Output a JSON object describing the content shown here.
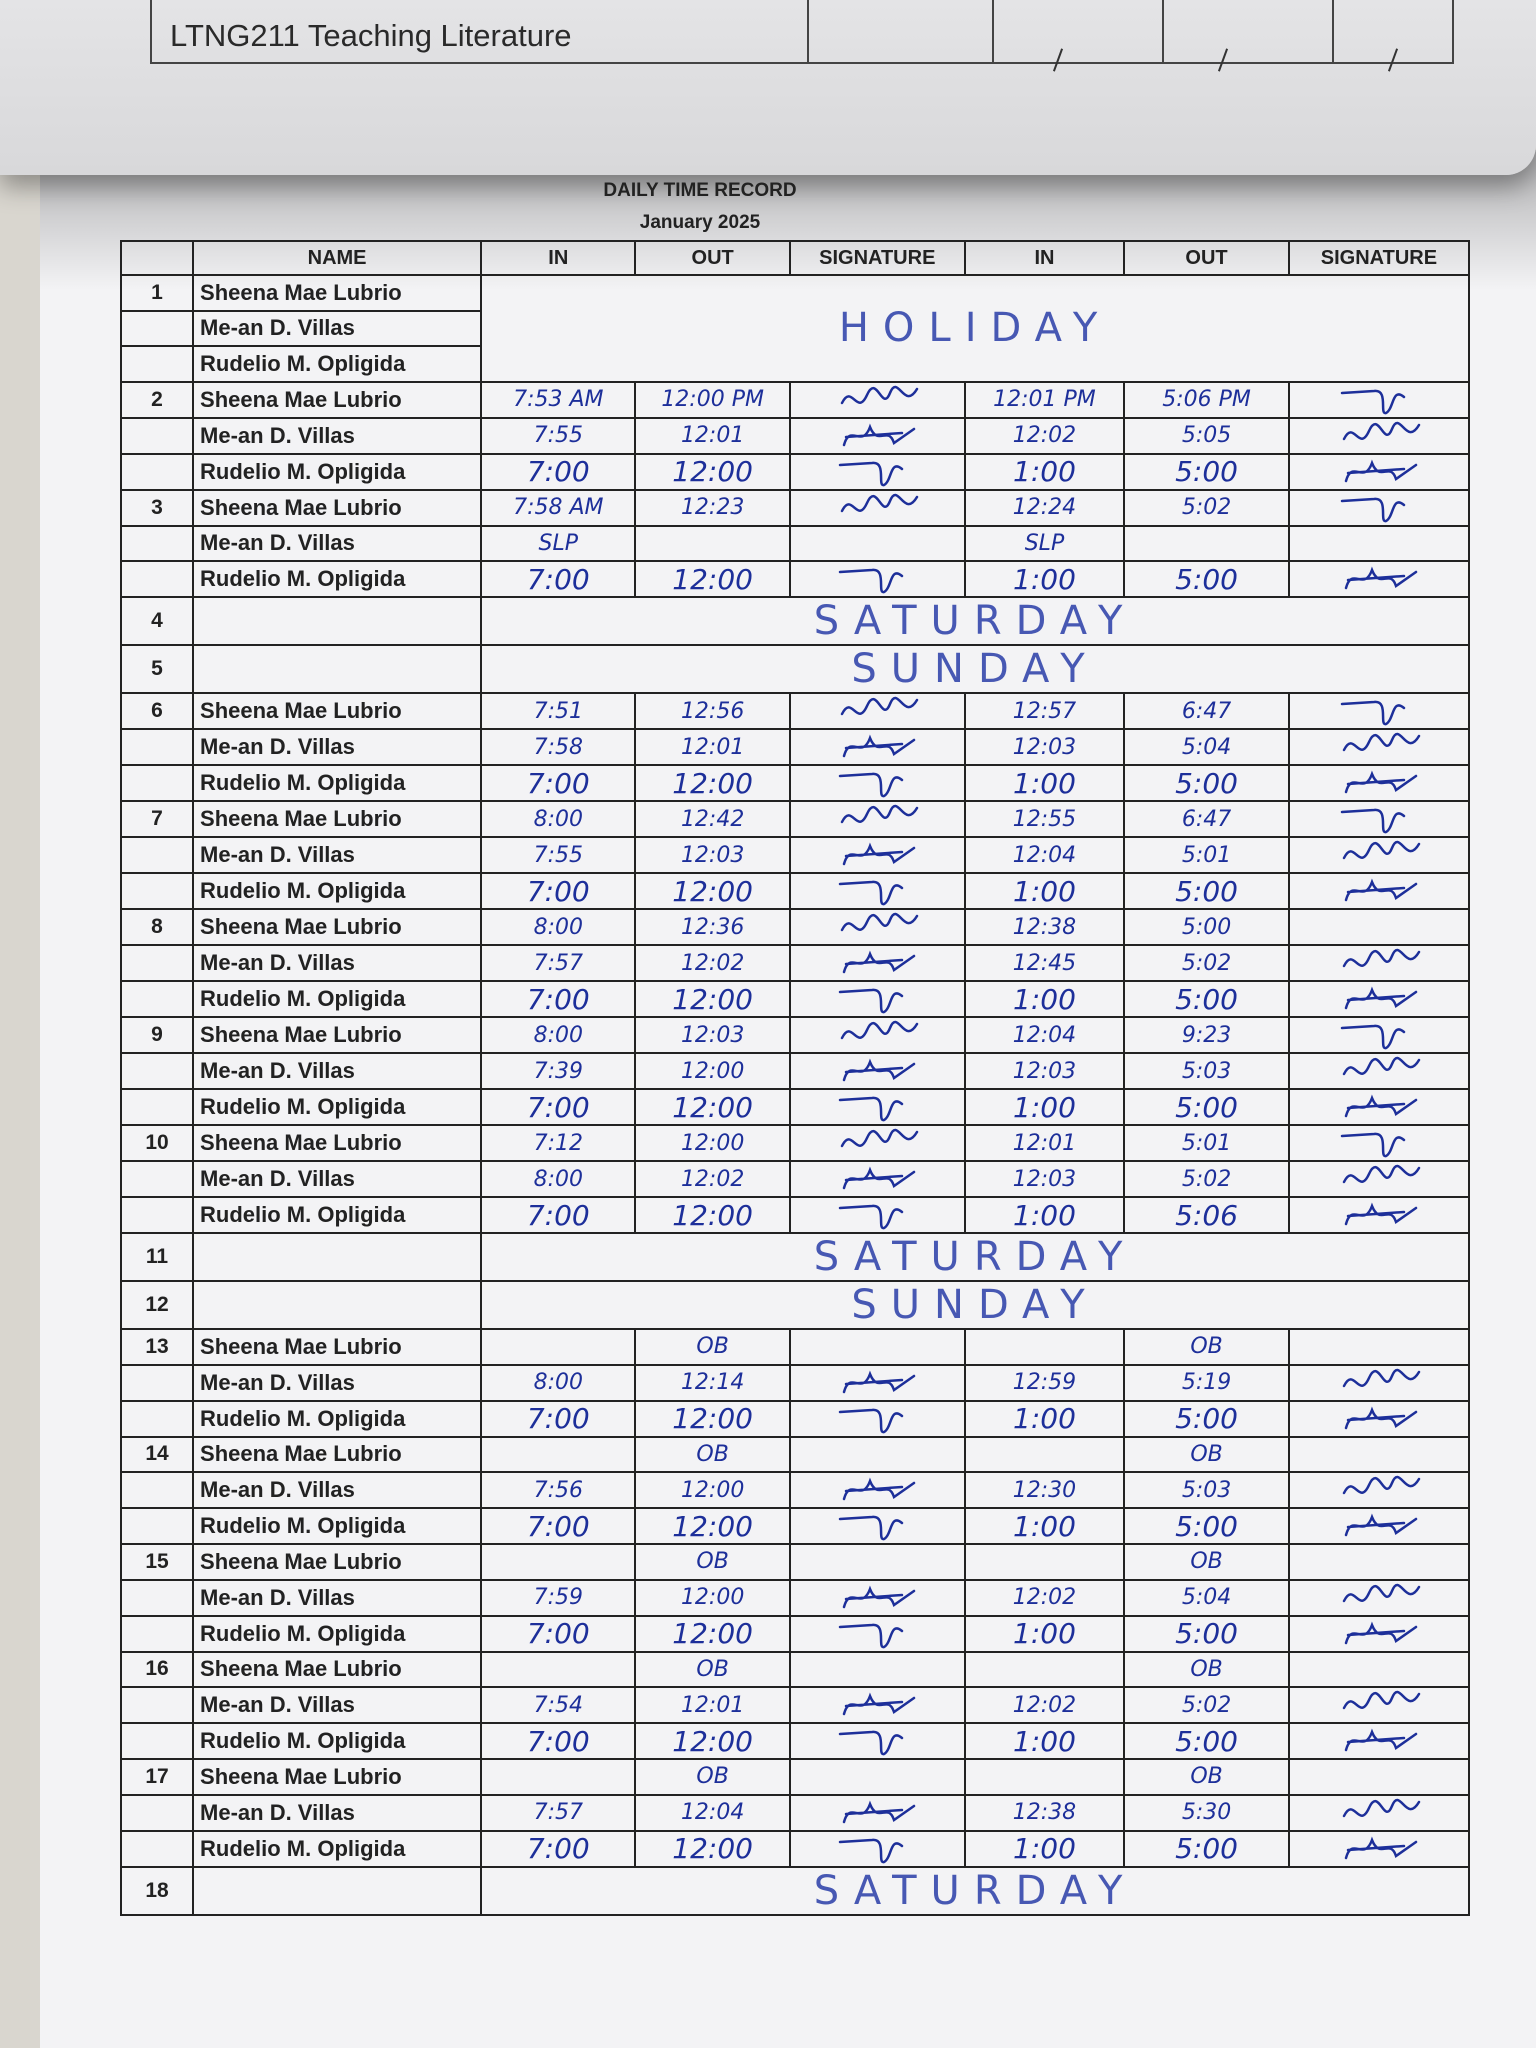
{
  "top_page": {
    "course": "LTNG211  Teaching Literature"
  },
  "document": {
    "title": "DAILY TIME RECORD",
    "period": "January 2025",
    "headers": [
      "",
      "NAME",
      "IN",
      "OUT",
      "SIGNATURE",
      "IN",
      "OUT",
      "SIGNATURE"
    ]
  },
  "ink_color": "#1d2f9a",
  "days": [
    {
      "day": "1",
      "note": "HOLIDAY",
      "entries": [
        {
          "name": "Sheena Mae Lubrio"
        },
        {
          "name": "Me-an D. Villas"
        },
        {
          "name": "Rudelio M. Opligida"
        }
      ]
    },
    {
      "day": "2",
      "entries": [
        {
          "name": "Sheena Mae Lubrio",
          "am_in": "7:53 AM",
          "am_out": "12:00 PM",
          "am_sig": true,
          "pm_in": "12:01 PM",
          "pm_out": "5:06 PM",
          "pm_sig": true
        },
        {
          "name": "Me-an D. Villas",
          "am_in": "7:55",
          "am_out": "12:01",
          "am_sig": true,
          "pm_in": "12:02",
          "pm_out": "5:05",
          "pm_sig": true
        },
        {
          "name": "Rudelio M. Opligida",
          "am_in": "7:00",
          "am_out": "12:00",
          "am_sig": true,
          "pm_in": "1:00",
          "pm_out": "5:00",
          "pm_sig": true
        }
      ]
    },
    {
      "day": "3",
      "entries": [
        {
          "name": "Sheena Mae Lubrio",
          "am_in": "7:58 AM",
          "am_out": "12:23",
          "am_sig": true,
          "pm_in": "12:24",
          "pm_out": "5:02",
          "pm_sig": true
        },
        {
          "name": "Me-an D. Villas",
          "am_in": "SLP",
          "pm_in": "SLP"
        },
        {
          "name": "Rudelio M. Opligida",
          "am_in": "7:00",
          "am_out": "12:00",
          "am_sig": true,
          "pm_in": "1:00",
          "pm_out": "5:00",
          "pm_sig": true
        }
      ]
    },
    {
      "day": "4",
      "note": "SATURDAY"
    },
    {
      "day": "5",
      "note": "SUNDAY"
    },
    {
      "day": "6",
      "entries": [
        {
          "name": "Sheena Mae Lubrio",
          "am_in": "7:51",
          "am_out": "12:56",
          "am_sig": true,
          "pm_in": "12:57",
          "pm_out": "6:47",
          "pm_sig": true
        },
        {
          "name": "Me-an D. Villas",
          "am_in": "7:58",
          "am_out": "12:01",
          "am_sig": true,
          "pm_in": "12:03",
          "pm_out": "5:04",
          "pm_sig": true
        },
        {
          "name": "Rudelio M. Opligida",
          "am_in": "7:00",
          "am_out": "12:00",
          "am_sig": true,
          "pm_in": "1:00",
          "pm_out": "5:00",
          "pm_sig": true
        }
      ]
    },
    {
      "day": "7",
      "entries": [
        {
          "name": "Sheena Mae Lubrio",
          "am_in": "8:00",
          "am_out": "12:42",
          "am_sig": true,
          "pm_in": "12:55",
          "pm_out": "6:47",
          "pm_sig": true
        },
        {
          "name": "Me-an D. Villas",
          "am_in": "7:55",
          "am_out": "12:03",
          "am_sig": true,
          "pm_in": "12:04",
          "pm_out": "5:01",
          "pm_sig": true
        },
        {
          "name": "Rudelio M. Opligida",
          "am_in": "7:00",
          "am_out": "12:00",
          "am_sig": true,
          "pm_in": "1:00",
          "pm_out": "5:00",
          "pm_sig": true
        }
      ]
    },
    {
      "day": "8",
      "entries": [
        {
          "name": "Sheena Mae Lubrio",
          "am_in": "8:00",
          "am_out": "12:36",
          "am_sig": true,
          "pm_in": "12:38",
          "pm_out": "5:00"
        },
        {
          "name": "Me-an D. Villas",
          "am_in": "7:57",
          "am_out": "12:02",
          "am_sig": true,
          "pm_in": "12:45",
          "pm_out": "5:02",
          "pm_sig": true
        },
        {
          "name": "Rudelio M. Opligida",
          "am_in": "7:00",
          "am_out": "12:00",
          "am_sig": true,
          "pm_in": "1:00",
          "pm_out": "5:00",
          "pm_sig": true
        }
      ]
    },
    {
      "day": "9",
      "entries": [
        {
          "name": "Sheena Mae Lubrio",
          "am_in": "8:00",
          "am_out": "12:03",
          "am_sig": true,
          "pm_in": "12:04",
          "pm_out": "9:23",
          "pm_sig": true
        },
        {
          "name": "Me-an D. Villas",
          "am_in": "7:39",
          "am_out": "12:00",
          "am_sig": true,
          "pm_in": "12:03",
          "pm_out": "5:03",
          "pm_sig": true
        },
        {
          "name": "Rudelio M. Opligida",
          "am_in": "7:00",
          "am_out": "12:00",
          "am_sig": true,
          "pm_in": "1:00",
          "pm_out": "5:00",
          "pm_sig": true
        }
      ]
    },
    {
      "day": "10",
      "entries": [
        {
          "name": "Sheena Mae Lubrio",
          "am_in": "7:12",
          "am_out": "12:00",
          "am_sig": true,
          "pm_in": "12:01",
          "pm_out": "5:01",
          "pm_sig": true
        },
        {
          "name": "Me-an D. Villas",
          "am_in": "8:00",
          "am_out": "12:02",
          "am_sig": true,
          "pm_in": "12:03",
          "pm_out": "5:02",
          "pm_sig": true
        },
        {
          "name": "Rudelio M. Opligida",
          "am_in": "7:00",
          "am_out": "12:00",
          "am_sig": true,
          "pm_in": "1:00",
          "pm_out": "5:06",
          "pm_sig": true
        }
      ]
    },
    {
      "day": "11",
      "note": "SATURDAY"
    },
    {
      "day": "12",
      "note": "SUNDAY"
    },
    {
      "day": "13",
      "entries": [
        {
          "name": "Sheena Mae Lubrio",
          "am_out": "OB",
          "pm_out": "OB"
        },
        {
          "name": "Me-an D. Villas",
          "am_in": "8:00",
          "am_out": "12:14",
          "am_sig": true,
          "pm_in": "12:59",
          "pm_out": "5:19",
          "pm_sig": true
        },
        {
          "name": "Rudelio M. Opligida",
          "am_in": "7:00",
          "am_out": "12:00",
          "am_sig": true,
          "pm_in": "1:00",
          "pm_out": "5:00",
          "pm_sig": true
        }
      ]
    },
    {
      "day": "14",
      "entries": [
        {
          "name": "Sheena Mae Lubrio",
          "am_out": "OB",
          "pm_out": "OB"
        },
        {
          "name": "Me-an D. Villas",
          "am_in": "7:56",
          "am_out": "12:00",
          "am_sig": true,
          "pm_in": "12:30",
          "pm_out": "5:03",
          "pm_sig": true
        },
        {
          "name": "Rudelio M. Opligida",
          "am_in": "7:00",
          "am_out": "12:00",
          "am_sig": true,
          "pm_in": "1:00",
          "pm_out": "5:00",
          "pm_sig": true
        }
      ]
    },
    {
      "day": "15",
      "entries": [
        {
          "name": "Sheena Mae Lubrio",
          "am_out": "OB",
          "pm_out": "OB"
        },
        {
          "name": "Me-an D. Villas",
          "am_in": "7:59",
          "am_out": "12:00",
          "am_sig": true,
          "pm_in": "12:02",
          "pm_out": "5:04",
          "pm_sig": true
        },
        {
          "name": "Rudelio M. Opligida",
          "am_in": "7:00",
          "am_out": "12:00",
          "am_sig": true,
          "pm_in": "1:00",
          "pm_out": "5:00",
          "pm_sig": true
        }
      ]
    },
    {
      "day": "16",
      "entries": [
        {
          "name": "Sheena Mae Lubrio",
          "am_out": "OB",
          "pm_out": "OB"
        },
        {
          "name": "Me-an D. Villas",
          "am_in": "7:54",
          "am_out": "12:01",
          "am_sig": true,
          "pm_in": "12:02",
          "pm_out": "5:02",
          "pm_sig": true
        },
        {
          "name": "Rudelio M. Opligida",
          "am_in": "7:00",
          "am_out": "12:00",
          "am_sig": true,
          "pm_in": "1:00",
          "pm_out": "5:00",
          "pm_sig": true
        }
      ]
    },
    {
      "day": "17",
      "entries": [
        {
          "name": "Sheena Mae Lubrio",
          "am_out": "OB",
          "pm_out": "OB"
        },
        {
          "name": "Me-an D. Villas",
          "am_in": "7:57",
          "am_out": "12:04",
          "am_sig": true,
          "pm_in": "12:38",
          "pm_out": "5:30",
          "pm_sig": true
        },
        {
          "name": "Rudelio M. Opligida",
          "am_in": "7:00",
          "am_out": "12:00",
          "am_sig": true,
          "pm_in": "1:00",
          "pm_out": "5:00",
          "pm_sig": true
        }
      ]
    },
    {
      "day": "18",
      "note": "SATURDAY"
    }
  ]
}
